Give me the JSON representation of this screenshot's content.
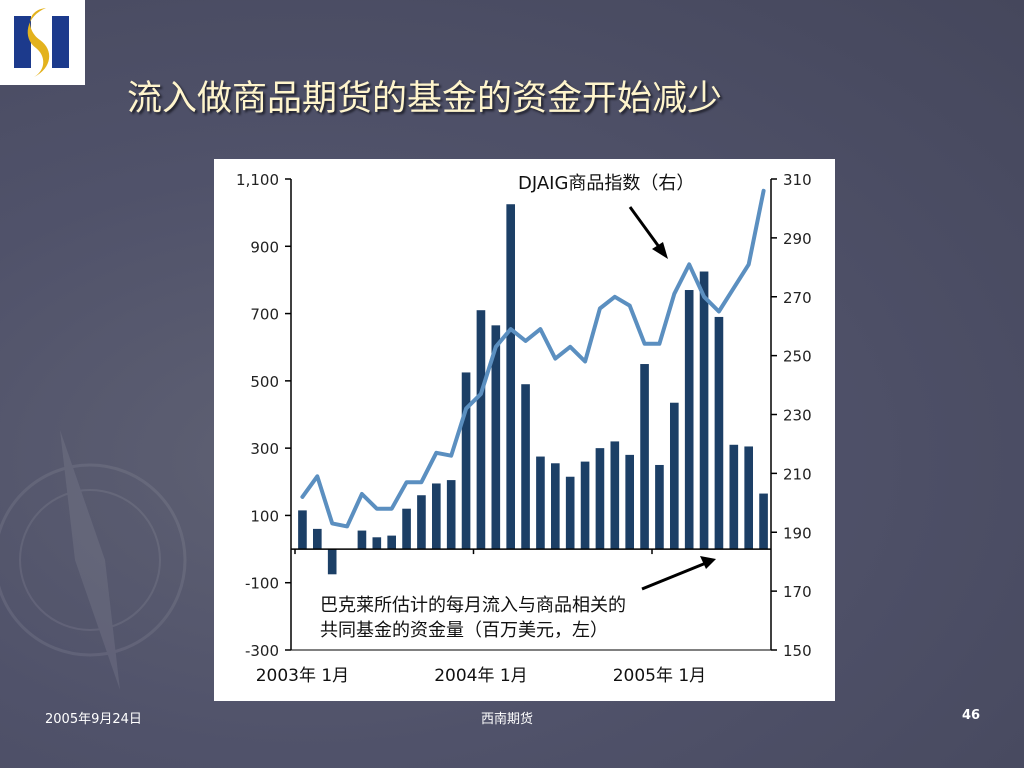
{
  "slide": {
    "title": "流入做商品期货的基金的资金开始减少",
    "footer_date": "2005年9月24日",
    "footer_company": "西南期货",
    "page_number": "46",
    "logo_icon": "company-logo-s-icon",
    "colors": {
      "background": "#50526a",
      "title": "#fff5cc",
      "bar": "#1c3f66",
      "line": "#5b8fc0",
      "logo_blue": "#1c3a8c",
      "logo_gold": "#e3b21e"
    }
  },
  "chart_data": {
    "type": "bar",
    "title": "",
    "left_axis": {
      "ylim": [
        -300,
        1100
      ],
      "ticks": [
        -300,
        -100,
        100,
        300,
        500,
        700,
        900,
        1100
      ],
      "tick_labels": [
        "-300",
        "-100",
        "100",
        "300",
        "500",
        "700",
        "900",
        "1,100"
      ]
    },
    "right_axis": {
      "ylim": [
        150,
        310
      ],
      "ticks": [
        150,
        170,
        190,
        210,
        230,
        250,
        270,
        290,
        310
      ],
      "tick_labels": [
        "150",
        "170",
        "190",
        "210",
        "230",
        "250",
        "270",
        "290",
        "310"
      ]
    },
    "x_labels": [
      "2003年 1月",
      "2004年 1月",
      "2005年 1月"
    ],
    "series": [
      {
        "name": "巴克莱所估计的每月流入与商品相关的共同基金的资金量（百万美元，左）",
        "axis": "left",
        "type": "bar",
        "values": [
          115,
          60,
          -75,
          0,
          55,
          35,
          40,
          120,
          160,
          195,
          205,
          525,
          710,
          665,
          1025,
          490,
          275,
          255,
          215,
          260,
          300,
          320,
          280,
          550,
          250,
          435,
          770,
          825,
          690,
          310,
          305,
          165
        ]
      },
      {
        "name": "DJAIG商品指数（右）",
        "axis": "right",
        "type": "line",
        "x": [
          0,
          1,
          2,
          3,
          4,
          5,
          6,
          7,
          8,
          9,
          10,
          11,
          12,
          13,
          14,
          15,
          16,
          17,
          18,
          19,
          20,
          21,
          22,
          23,
          24,
          25,
          26,
          27,
          28,
          29,
          30,
          31
        ],
        "values": [
          202,
          209,
          193,
          192,
          203,
          198,
          198,
          207,
          207,
          217,
          216,
          232,
          237,
          253,
          259,
          255,
          259,
          249,
          253,
          248,
          266,
          270,
          267,
          254,
          254,
          271,
          281,
          270,
          265,
          273,
          281,
          306
        ]
      }
    ],
    "annotations": [
      {
        "id": "index_label",
        "text": "DJAIG商品指数（右）"
      },
      {
        "id": "flow_label_line1",
        "text": "巴克莱所估计的每月流入与商品相关的"
      },
      {
        "id": "flow_label_line2",
        "text": "共同基金的资金量（百万美元，左）"
      }
    ]
  }
}
